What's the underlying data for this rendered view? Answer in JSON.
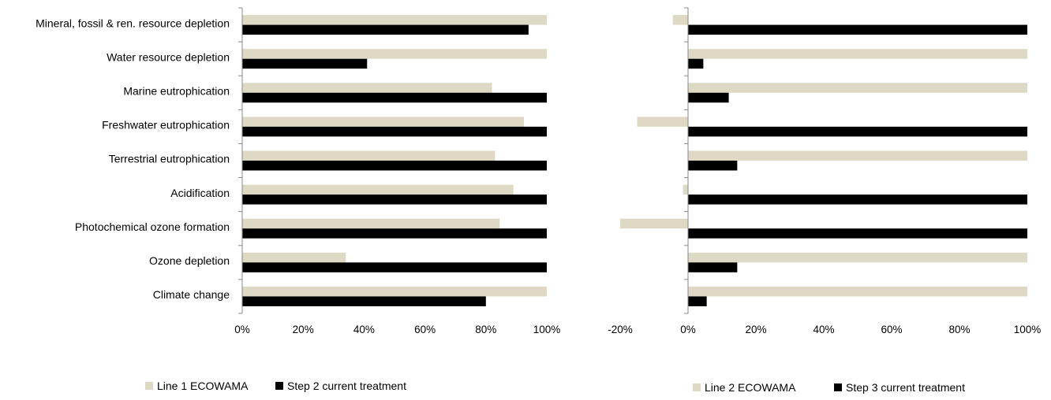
{
  "chart_data": [
    {
      "type": "bar",
      "orientation": "horizontal",
      "categories": [
        "Mineral, fossil & ren. resource depletion",
        "Water resource depletion",
        "Marine eutrophication",
        "Freshwater eutrophication",
        "Terrestrial eutrophication",
        "Acidification",
        "Photochemical ozone formation",
        "Ozone depletion",
        "Climate change"
      ],
      "series": [
        {
          "name": "Line 1 ECOWAMA",
          "color": "#ddd9c4",
          "values": [
            100,
            100,
            82,
            92.5,
            83,
            89,
            84.5,
            34,
            100
          ]
        },
        {
          "name": "Step 2 current treatment",
          "color": "#000000",
          "values": [
            94,
            41,
            100,
            100,
            100,
            100,
            100,
            100,
            80
          ]
        }
      ],
      "xlim": [
        0,
        100
      ],
      "xticks": [
        0,
        20,
        40,
        60,
        80,
        100
      ],
      "xtick_labels": [
        "0%",
        "20%",
        "40%",
        "60%",
        "80%",
        "100%"
      ],
      "grid": false,
      "legend_position": "bottom-left"
    },
    {
      "type": "bar",
      "orientation": "horizontal",
      "categories": [
        "Mineral, fossil & ren. resource depletion",
        "Water resource depletion",
        "Marine eutrophication",
        "Freshwater eutrophication",
        "Terrestrial eutrophication",
        "Acidification",
        "Photochemical ozone formation",
        "Ozone depletion",
        "Climate change"
      ],
      "series": [
        {
          "name": "Line 2 ECOWAMA",
          "color": "#ddd9c4",
          "values": [
            -4.5,
            100,
            100,
            -15,
            100,
            -1.5,
            -20,
            100,
            100
          ]
        },
        {
          "name": "Step 3 current treatment",
          "color": "#000000",
          "values": [
            100,
            4.5,
            12,
            100,
            14.5,
            100,
            100,
            14.5,
            5.5
          ]
        }
      ],
      "xlim": [
        -20,
        100
      ],
      "xticks": [
        -20,
        0,
        20,
        40,
        60,
        80,
        100
      ],
      "xtick_labels": [
        "-20%",
        "0%",
        "20%",
        "40%",
        "60%",
        "80%",
        "100%"
      ],
      "grid": false,
      "legend_position": "bottom-right"
    }
  ]
}
